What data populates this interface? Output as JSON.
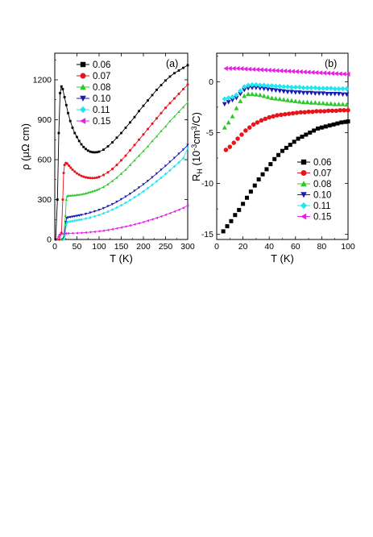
{
  "chart_data": [
    {
      "type": "line",
      "panel_label": "(a)",
      "xlabel": "T (K)",
      "ylabel": "ρ (μΩ cm)",
      "xlim": [
        0,
        300
      ],
      "ylim": [
        0,
        1400
      ],
      "xticks": [
        0,
        50,
        100,
        150,
        200,
        250,
        300
      ],
      "yticks": [
        0,
        300,
        600,
        900,
        1200
      ],
      "legend_position": "top-left",
      "series": [
        {
          "name": "0.06",
          "color": "#000000",
          "marker": "square",
          "x": [
            2,
            6,
            9,
            12,
            15,
            18,
            22,
            26,
            30,
            35,
            40,
            45,
            50,
            55,
            60,
            65,
            70,
            75,
            80,
            85,
            90,
            95,
            100,
            110,
            120,
            130,
            140,
            150,
            160,
            170,
            180,
            190,
            200,
            210,
            220,
            230,
            240,
            250,
            260,
            270,
            280,
            290,
            300
          ],
          "y": [
            0,
            300,
            800,
            1100,
            1150,
            1130,
            1070,
            1010,
            950,
            890,
            840,
            800,
            770,
            740,
            715,
            695,
            680,
            668,
            660,
            656,
            655,
            656,
            660,
            675,
            700,
            730,
            765,
            800,
            840,
            880,
            920,
            965,
            1005,
            1045,
            1085,
            1125,
            1160,
            1195,
            1225,
            1250,
            1270,
            1290,
            1310
          ]
        },
        {
          "name": "0.07",
          "color": "#e8141c",
          "marker": "circle",
          "x": [
            10,
            15,
            18,
            20,
            22,
            25,
            28,
            32,
            36,
            40,
            45,
            50,
            55,
            60,
            65,
            70,
            75,
            80,
            85,
            90,
            95,
            100,
            110,
            120,
            130,
            140,
            150,
            160,
            170,
            180,
            190,
            200,
            210,
            220,
            230,
            240,
            250,
            260,
            270,
            280,
            290,
            300
          ],
          "y": [
            0,
            50,
            300,
            500,
            560,
            575,
            570,
            555,
            540,
            525,
            510,
            497,
            487,
            478,
            472,
            467,
            464,
            462,
            461,
            462,
            465,
            470,
            485,
            505,
            530,
            560,
            595,
            630,
            670,
            710,
            750,
            790,
            830,
            870,
            910,
            950,
            990,
            1025,
            1060,
            1095,
            1130,
            1165
          ]
        },
        {
          "name": "0.08",
          "color": "#2ec82e",
          "marker": "triangle-up",
          "x": [
            15,
            20,
            24,
            26,
            28,
            30,
            35,
            40,
            45,
            50,
            55,
            60,
            65,
            70,
            75,
            80,
            85,
            90,
            95,
            100,
            110,
            120,
            130,
            140,
            150,
            160,
            170,
            180,
            190,
            200,
            210,
            220,
            230,
            240,
            250,
            260,
            270,
            280,
            290,
            300
          ],
          "y": [
            0,
            20,
            180,
            300,
            325,
            330,
            330,
            332,
            333,
            335,
            337,
            340,
            343,
            347,
            352,
            357,
            362,
            367,
            373,
            380,
            395,
            415,
            440,
            465,
            495,
            525,
            560,
            595,
            630,
            665,
            700,
            740,
            775,
            815,
            850,
            890,
            925,
            960,
            995,
            1030
          ]
        },
        {
          "name": "0.10",
          "color": "#1a1ab4",
          "marker": "triangle-down",
          "x": [
            18,
            22,
            25,
            27,
            30,
            35,
            40,
            45,
            50,
            55,
            60,
            70,
            80,
            90,
            100,
            110,
            120,
            130,
            140,
            150,
            160,
            170,
            180,
            190,
            200,
            210,
            220,
            230,
            240,
            250,
            260,
            270,
            280,
            290,
            300
          ],
          "y": [
            0,
            30,
            130,
            160,
            165,
            168,
            171,
            174,
            177,
            180,
            184,
            192,
            201,
            211,
            222,
            235,
            250,
            265,
            283,
            302,
            322,
            343,
            366,
            390,
            414,
            440,
            467,
            495,
            524,
            553,
            583,
            613,
            644,
            675,
            710
          ]
        },
        {
          "name": "0.11",
          "color": "#22e6f0",
          "marker": "diamond",
          "x": [
            20,
            23,
            26,
            28,
            30,
            35,
            40,
            45,
            50,
            55,
            60,
            70,
            80,
            90,
            100,
            110,
            120,
            130,
            140,
            150,
            160,
            170,
            180,
            190,
            200,
            210,
            220,
            230,
            240,
            250,
            260,
            270,
            280,
            290,
            300
          ],
          "y": [
            0,
            30,
            110,
            128,
            132,
            135,
            138,
            141,
            144,
            147,
            150,
            157,
            165,
            174,
            184,
            196,
            209,
            224,
            240,
            257,
            276,
            296,
            317,
            339,
            362,
            386,
            411,
            437,
            464,
            492,
            520,
            549,
            579,
            610,
            685
          ]
        },
        {
          "name": "0.15",
          "color": "#e61ee6",
          "marker": "triangle-left",
          "x": [
            5,
            8,
            10,
            12,
            15,
            20,
            25,
            30,
            40,
            50,
            60,
            70,
            80,
            90,
            100,
            110,
            120,
            130,
            140,
            150,
            160,
            170,
            180,
            190,
            200,
            210,
            220,
            230,
            240,
            250,
            260,
            270,
            280,
            290,
            300
          ],
          "y": [
            0,
            20,
            35,
            40,
            42,
            44,
            45,
            46,
            47,
            48,
            50,
            52,
            55,
            58,
            62,
            66,
            71,
            77,
            83,
            90,
            97,
            105,
            113,
            122,
            131,
            141,
            151,
            162,
            173,
            185,
            197,
            210,
            223,
            237,
            255
          ]
        }
      ]
    },
    {
      "type": "scatter",
      "panel_label": "(b)",
      "xlabel": "T (K)",
      "ylabel": "R_H (10^-3 cm^3/C)",
      "ylabel_parts": {
        "main": "R",
        "sub": "H",
        "open": " (10",
        "sup1": "-3",
        "mid": "cm",
        "sup2": "3",
        "close": "/C)"
      },
      "xlim": [
        0,
        100
      ],
      "ylim": [
        -15.5,
        2.8
      ],
      "xticks": [
        0,
        20,
        40,
        60,
        80,
        100
      ],
      "yticks": [
        -15,
        -10,
        -5,
        0
      ],
      "legend_position": "bottom-right",
      "series": [
        {
          "name": "0.06",
          "color": "#000000",
          "marker": "square",
          "x": [
            5,
            8,
            11,
            14,
            17,
            20,
            23,
            26,
            29,
            32,
            35,
            38,
            41,
            44,
            47,
            50,
            53,
            56,
            59,
            62,
            65,
            68,
            71,
            74,
            77,
            80,
            83,
            86,
            89,
            92,
            95,
            98,
            100
          ],
          "y": [
            -14.7,
            -14.2,
            -13.7,
            -13.1,
            -12.6,
            -12.0,
            -11.4,
            -10.8,
            -10.2,
            -9.6,
            -9.1,
            -8.6,
            -8.1,
            -7.6,
            -7.2,
            -6.8,
            -6.5,
            -6.2,
            -5.9,
            -5.6,
            -5.4,
            -5.2,
            -5.0,
            -4.8,
            -4.6,
            -4.5,
            -4.4,
            -4.3,
            -4.2,
            -4.1,
            -4.0,
            -3.95,
            -3.9
          ]
        },
        {
          "name": "0.07",
          "color": "#e8141c",
          "marker": "circle",
          "x": [
            7,
            10,
            13,
            16,
            19,
            22,
            25,
            28,
            31,
            34,
            37,
            40,
            43,
            46,
            49,
            52,
            55,
            58,
            61,
            64,
            67,
            70,
            73,
            76,
            79,
            82,
            85,
            88,
            91,
            94,
            97,
            100
          ],
          "y": [
            -6.7,
            -6.4,
            -6.0,
            -5.6,
            -5.2,
            -4.8,
            -4.5,
            -4.2,
            -4.0,
            -3.8,
            -3.65,
            -3.5,
            -3.4,
            -3.3,
            -3.25,
            -3.2,
            -3.15,
            -3.1,
            -3.05,
            -3.0,
            -3.0,
            -2.95,
            -2.95,
            -2.9,
            -2.9,
            -2.9,
            -2.85,
            -2.85,
            -2.85,
            -2.8,
            -2.8,
            -2.8
          ]
        },
        {
          "name": "0.08",
          "color": "#2ec82e",
          "marker": "triangle-up",
          "x": [
            6,
            9,
            12,
            15,
            18,
            21,
            24,
            27,
            30,
            33,
            36,
            39,
            42,
            45,
            48,
            51,
            54,
            57,
            60,
            63,
            66,
            69,
            72,
            75,
            78,
            81,
            84,
            87,
            90,
            93,
            96,
            99
          ],
          "y": [
            -4.5,
            -4.0,
            -3.4,
            -2.6,
            -1.9,
            -1.4,
            -1.2,
            -1.2,
            -1.25,
            -1.3,
            -1.4,
            -1.5,
            -1.6,
            -1.65,
            -1.7,
            -1.75,
            -1.8,
            -1.85,
            -1.9,
            -1.95,
            -2.0,
            -2.0,
            -2.05,
            -2.05,
            -2.1,
            -2.1,
            -2.15,
            -2.15,
            -2.2,
            -2.2,
            -2.2,
            -2.25
          ]
        },
        {
          "name": "0.10",
          "color": "#1a1ab4",
          "marker": "triangle-down",
          "x": [
            6,
            9,
            12,
            15,
            18,
            21,
            24,
            27,
            30,
            33,
            36,
            39,
            42,
            45,
            48,
            51,
            54,
            57,
            60,
            63,
            66,
            69,
            72,
            75,
            78,
            81,
            84,
            87,
            90,
            93,
            96,
            99
          ],
          "y": [
            -2.2,
            -2.0,
            -1.8,
            -1.6,
            -1.2,
            -0.8,
            -0.65,
            -0.6,
            -0.6,
            -0.65,
            -0.7,
            -0.75,
            -0.8,
            -0.85,
            -0.9,
            -0.95,
            -1.0,
            -1.0,
            -1.05,
            -1.05,
            -1.1,
            -1.1,
            -1.1,
            -1.15,
            -1.15,
            -1.15,
            -1.2,
            -1.2,
            -1.2,
            -1.2,
            -1.25,
            -1.25
          ]
        },
        {
          "name": "0.11",
          "color": "#22e6f0",
          "marker": "diamond",
          "x": [
            6,
            9,
            12,
            15,
            18,
            21,
            24,
            27,
            30,
            33,
            36,
            39,
            42,
            45,
            48,
            51,
            54,
            57,
            60,
            63,
            66,
            69,
            72,
            75,
            78,
            81,
            84,
            87,
            90,
            93,
            96,
            99
          ],
          "y": [
            -1.7,
            -1.6,
            -1.5,
            -1.3,
            -0.9,
            -0.5,
            -0.35,
            -0.3,
            -0.3,
            -0.35,
            -0.35,
            -0.4,
            -0.4,
            -0.45,
            -0.45,
            -0.5,
            -0.5,
            -0.55,
            -0.55,
            -0.55,
            -0.6,
            -0.6,
            -0.6,
            -0.6,
            -0.65,
            -0.65,
            -0.65,
            -0.65,
            -0.7,
            -0.7,
            -0.7,
            -0.7
          ]
        },
        {
          "name": "0.15",
          "color": "#e61ee6",
          "marker": "triangle-left",
          "x": [
            7,
            10,
            13,
            16,
            19,
            22,
            25,
            28,
            31,
            34,
            37,
            40,
            43,
            46,
            49,
            52,
            55,
            58,
            61,
            64,
            67,
            70,
            73,
            76,
            79,
            82,
            85,
            88,
            91,
            94,
            97,
            100
          ],
          "y": [
            1.3,
            1.3,
            1.3,
            1.3,
            1.28,
            1.26,
            1.24,
            1.22,
            1.2,
            1.18,
            1.16,
            1.14,
            1.12,
            1.1,
            1.08,
            1.06,
            1.04,
            1.02,
            1.0,
            0.98,
            0.96,
            0.94,
            0.92,
            0.9,
            0.88,
            0.86,
            0.84,
            0.82,
            0.8,
            0.78,
            0.76,
            0.74
          ]
        }
      ]
    }
  ]
}
